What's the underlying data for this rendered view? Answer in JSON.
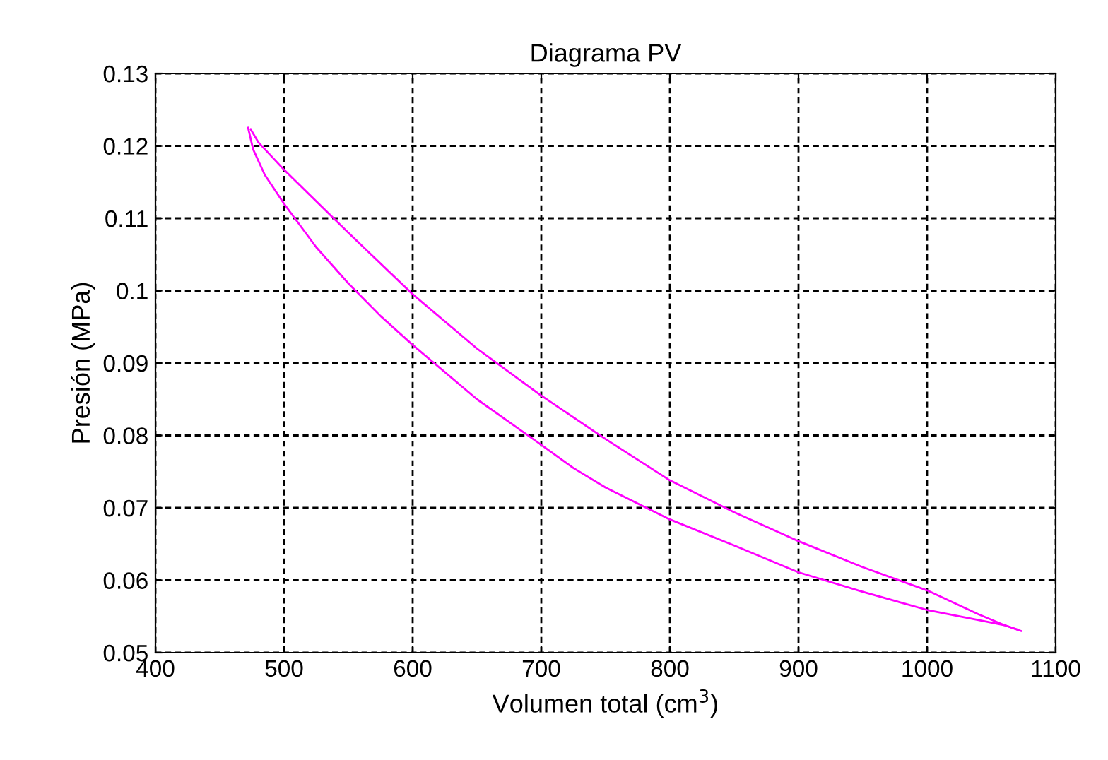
{
  "chart_data": {
    "type": "line",
    "title": "Diagrama PV",
    "xlabel": "Volumen total (cm$^{3}$)",
    "ylabel": "Presión (MPa)",
    "xlim": [
      400,
      1100
    ],
    "xticks": [
      400,
      500,
      600,
      700,
      800,
      900,
      1000,
      1100
    ],
    "ylim": [
      0.05,
      0.13
    ],
    "yticks": [
      0.05,
      0.06,
      0.07,
      0.08,
      0.09,
      0.1,
      0.11,
      0.12,
      0.13
    ],
    "grid": true,
    "marker": "none",
    "line_style": "solid",
    "series": [
      {
        "color": "#ff00ff",
        "x": [
          472,
          476,
          485,
          500,
          525,
          550,
          575,
          600,
          650,
          700,
          725,
          750,
          800,
          850,
          900,
          950,
          1000,
          1040,
          1060,
          1073
        ],
        "values": [
          0.1225,
          0.1195,
          0.116,
          0.112,
          0.106,
          0.101,
          0.0965,
          0.0925,
          0.085,
          0.0787,
          0.0755,
          0.0728,
          0.0684,
          0.0648,
          0.0611,
          0.0584,
          0.0559,
          0.0545,
          0.0538,
          0.053
        ]
      },
      {
        "color": "#ff00ff",
        "x": [
          474,
          480,
          500,
          550,
          600,
          650,
          700,
          750,
          800,
          850,
          900,
          950,
          1000,
          1040,
          1060,
          1070
        ],
        "values": [
          0.1223,
          0.1205,
          0.1167,
          0.108,
          0.0995,
          0.092,
          0.0855,
          0.0795,
          0.0738,
          0.0694,
          0.0654,
          0.0618,
          0.0586,
          0.0553,
          0.0538,
          0.0532
        ]
      }
    ]
  }
}
